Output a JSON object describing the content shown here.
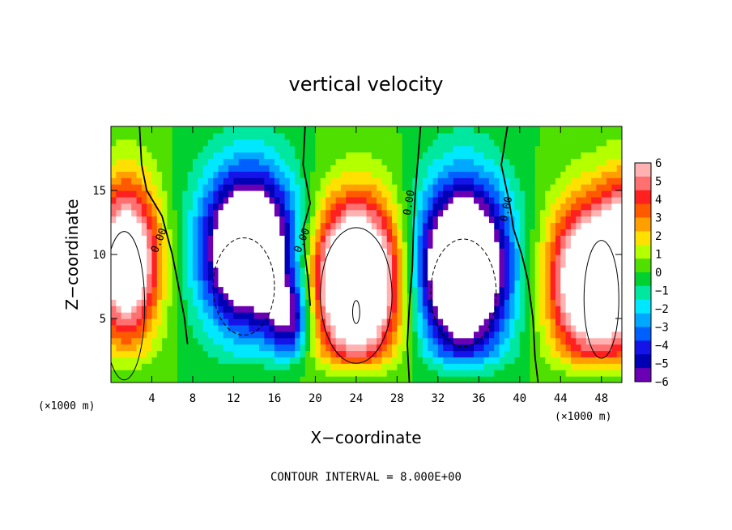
{
  "chart_data": {
    "type": "heatmap",
    "title": "vertical velocity",
    "xlabel": "X−coordinate",
    "ylabel": "Z−coordinate",
    "x_unit_note": "(×1000 m)",
    "y_unit_note": "(×1000 m)",
    "xlim": [
      0,
      50
    ],
    "ylim": [
      0,
      20
    ],
    "x_ticks": [
      4,
      8,
      12,
      16,
      20,
      24,
      28,
      32,
      36,
      40,
      44,
      48
    ],
    "y_ticks": [
      5,
      10,
      15
    ],
    "x_tick_labels": [
      "4",
      "8",
      "12",
      "16",
      "20",
      "24",
      "28",
      "32",
      "36",
      "40",
      "44",
      "48"
    ],
    "y_tick_labels": [
      "5",
      "10",
      "15"
    ],
    "colorbar": {
      "min": -6,
      "max": 6,
      "ticks": [
        6,
        5,
        4,
        3,
        2,
        1,
        0,
        -1,
        -2,
        -3,
        -4,
        -5,
        -6
      ],
      "tick_labels": [
        "6",
        "5",
        "4",
        "3",
        "2",
        "1",
        "0",
        "−1",
        "−2",
        "−3",
        "−4",
        "−5",
        "−6"
      ],
      "colors": [
        "#ffb2b2",
        "#ff7070",
        "#ff2020",
        "#ff5a00",
        "#ffa000",
        "#ffe000",
        "#b4ff00",
        "#50e000",
        "#00d030",
        "#00e8a0",
        "#00e8ff",
        "#00a8ff",
        "#0060ff",
        "#1414e8",
        "#0000b4",
        "#6a00b4"
      ]
    },
    "features": [
      {
        "sign": "up",
        "x": 1.5,
        "z": 9.5,
        "rx": 3.2,
        "rz": 6.0,
        "amp": 9
      },
      {
        "sign": "up",
        "x": 24.0,
        "z": 8.0,
        "rx": 4.2,
        "rz": 6.0,
        "amp": 12
      },
      {
        "sign": "up",
        "x": 47.0,
        "z": 8.0,
        "rx": 4.0,
        "rz": 6.0,
        "amp": 10
      },
      {
        "sign": "up",
        "x": 50.5,
        "z": 10.0,
        "rx": 2.5,
        "rz": 6.0,
        "amp": 6
      },
      {
        "sign": "down",
        "x": 13.5,
        "z": 10.5,
        "rx": 4.5,
        "rz": 6.0,
        "amp": 11
      },
      {
        "sign": "down",
        "x": 34.5,
        "z": 9.0,
        "rx": 4.3,
        "rz": 6.5,
        "amp": 12
      },
      {
        "sign": "down",
        "x": 17.5,
        "z": 5.0,
        "rx": 2.0,
        "rz": 3.0,
        "amp": 5
      }
    ],
    "contour_labels": [
      {
        "text": "0.00",
        "x": 5.0,
        "z": 11.0,
        "angle": -68
      },
      {
        "text": "0.00",
        "x": 19.0,
        "z": 11.0,
        "angle": -68
      },
      {
        "text": "0.00",
        "x": 29.5,
        "z": 14.0,
        "angle": -80
      },
      {
        "text": "0.00",
        "x": 39.0,
        "z": 13.5,
        "angle": -78
      }
    ],
    "zero_lines": [
      [
        [
          2.8,
          20
        ],
        [
          3.0,
          17
        ],
        [
          3.5,
          15
        ],
        [
          5.0,
          13
        ],
        [
          6.0,
          10
        ],
        [
          6.5,
          8
        ],
        [
          7.2,
          5
        ],
        [
          7.5,
          3
        ]
      ],
      [
        [
          19.0,
          20
        ],
        [
          18.8,
          17
        ],
        [
          19.5,
          14
        ],
        [
          18.8,
          12
        ],
        [
          19.0,
          10
        ],
        [
          19.3,
          8
        ],
        [
          19.5,
          6
        ]
      ],
      [
        [
          30.3,
          20
        ],
        [
          30.0,
          17
        ],
        [
          29.8,
          15
        ],
        [
          29.6,
          12
        ],
        [
          29.5,
          9
        ],
        [
          29.2,
          6
        ],
        [
          29.0,
          3
        ],
        [
          29.2,
          0
        ]
      ],
      [
        [
          38.8,
          20
        ],
        [
          38.2,
          17
        ],
        [
          39.0,
          14
        ],
        [
          39.4,
          12
        ],
        [
          40.2,
          10
        ],
        [
          40.8,
          8
        ],
        [
          41.3,
          5
        ],
        [
          41.5,
          2
        ],
        [
          41.8,
          0
        ]
      ]
    ],
    "solid_closed_contours": [
      {
        "x": 1.3,
        "z": 6.0,
        "rx": 2.0,
        "rz": 5.8
      },
      {
        "x": 24.0,
        "z": 6.8,
        "rx": 3.5,
        "rz": 5.3
      },
      {
        "x": 24.0,
        "z": 5.5,
        "rx": 0.35,
        "rz": 0.9
      },
      {
        "x": 48.0,
        "z": 6.5,
        "rx": 1.7,
        "rz": 4.6
      }
    ],
    "dashed_contours": [
      {
        "x": 13.0,
        "z": 7.5,
        "rx": 3.0,
        "rz": 3.8
      },
      {
        "x": 34.5,
        "z": 7.0,
        "rx": 3.2,
        "rz": 4.2
      }
    ],
    "note": "CONTOUR INTERVAL = 8.000E+00"
  }
}
